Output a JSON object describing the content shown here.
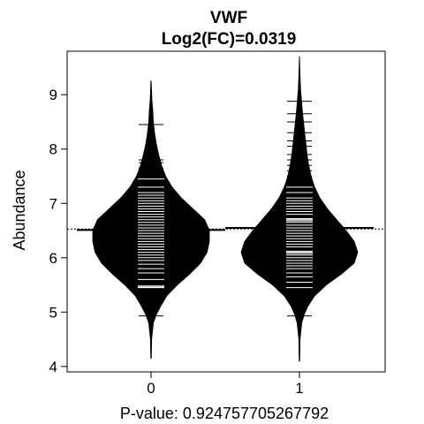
{
  "chart_data": {
    "type": "beanplot",
    "title": "VWF",
    "subtitle": "Log2(FC)=0.0319",
    "xlabel": "P-value: 0.924757705267792",
    "ylabel": "Abundance",
    "categories": [
      "0",
      "1"
    ],
    "x_ticks": [
      "0",
      "1"
    ],
    "y_ticks": [
      4,
      5,
      6,
      7,
      8,
      9
    ],
    "ylim": [
      3.9,
      9.8
    ],
    "overall_mean": 6.53,
    "groups": [
      {
        "name": "0",
        "mean": 6.51,
        "range": [
          4.15,
          9.25
        ],
        "density": [
          [
            4.15,
            0.005
          ],
          [
            4.5,
            0.01
          ],
          [
            4.8,
            0.04
          ],
          [
            4.95,
            0.09
          ],
          [
            5.1,
            0.16
          ],
          [
            5.3,
            0.27
          ],
          [
            5.5,
            0.45
          ],
          [
            5.7,
            0.66
          ],
          [
            5.9,
            0.85
          ],
          [
            6.1,
            0.96
          ],
          [
            6.3,
            1.0
          ],
          [
            6.5,
            1.0
          ],
          [
            6.7,
            0.92
          ],
          [
            6.9,
            0.72
          ],
          [
            7.1,
            0.52
          ],
          [
            7.3,
            0.36
          ],
          [
            7.5,
            0.25
          ],
          [
            7.7,
            0.18
          ],
          [
            7.9,
            0.13
          ],
          [
            8.1,
            0.09
          ],
          [
            8.3,
            0.06
          ],
          [
            8.5,
            0.04
          ],
          [
            8.7,
            0.03
          ],
          [
            8.9,
            0.015
          ],
          [
            9.1,
            0.008
          ],
          [
            9.25,
            0.003
          ]
        ],
        "observations": [
          4.93,
          5.45,
          5.46,
          5.48,
          5.6,
          5.72,
          5.8,
          5.88,
          5.95,
          6.0,
          6.05,
          6.1,
          6.15,
          6.2,
          6.25,
          6.3,
          6.35,
          6.4,
          6.45,
          6.5,
          6.55,
          6.6,
          6.65,
          6.7,
          6.75,
          6.8,
          6.85,
          6.9,
          6.95,
          7.0,
          7.05,
          7.1,
          7.15,
          7.2,
          7.3,
          7.45,
          7.55,
          7.65,
          7.75,
          7.8,
          8.45
        ]
      },
      {
        "name": "1",
        "mean": 6.55,
        "range": [
          4.1,
          9.7
        ],
        "density": [
          [
            4.1,
            0.005
          ],
          [
            4.5,
            0.01
          ],
          [
            4.8,
            0.04
          ],
          [
            4.95,
            0.08
          ],
          [
            5.1,
            0.14
          ],
          [
            5.3,
            0.26
          ],
          [
            5.5,
            0.46
          ],
          [
            5.7,
            0.72
          ],
          [
            5.9,
            0.94
          ],
          [
            6.1,
            1.0
          ],
          [
            6.3,
            0.94
          ],
          [
            6.5,
            0.8
          ],
          [
            6.7,
            0.64
          ],
          [
            6.9,
            0.48
          ],
          [
            7.1,
            0.35
          ],
          [
            7.3,
            0.26
          ],
          [
            7.5,
            0.2
          ],
          [
            7.7,
            0.16
          ],
          [
            7.9,
            0.13
          ],
          [
            8.1,
            0.11
          ],
          [
            8.3,
            0.09
          ],
          [
            8.5,
            0.07
          ],
          [
            8.7,
            0.05
          ],
          [
            8.9,
            0.035
          ],
          [
            9.1,
            0.02
          ],
          [
            9.3,
            0.012
          ],
          [
            9.5,
            0.006
          ],
          [
            9.7,
            0.002
          ]
        ],
        "observations": [
          4.93,
          5.45,
          5.55,
          5.65,
          5.72,
          5.8,
          5.85,
          5.9,
          5.95,
          6.0,
          6.05,
          6.08,
          6.1,
          6.12,
          6.2,
          6.25,
          6.3,
          6.35,
          6.4,
          6.45,
          6.5,
          6.55,
          6.6,
          6.65,
          6.68,
          6.7,
          6.72,
          6.8,
          6.85,
          6.9,
          6.95,
          7.0,
          7.05,
          7.1,
          7.2,
          7.3,
          7.4,
          7.5,
          7.6,
          7.7,
          7.8,
          7.9,
          8.05,
          8.15,
          8.3,
          8.5,
          8.65,
          8.88
        ]
      }
    ]
  }
}
